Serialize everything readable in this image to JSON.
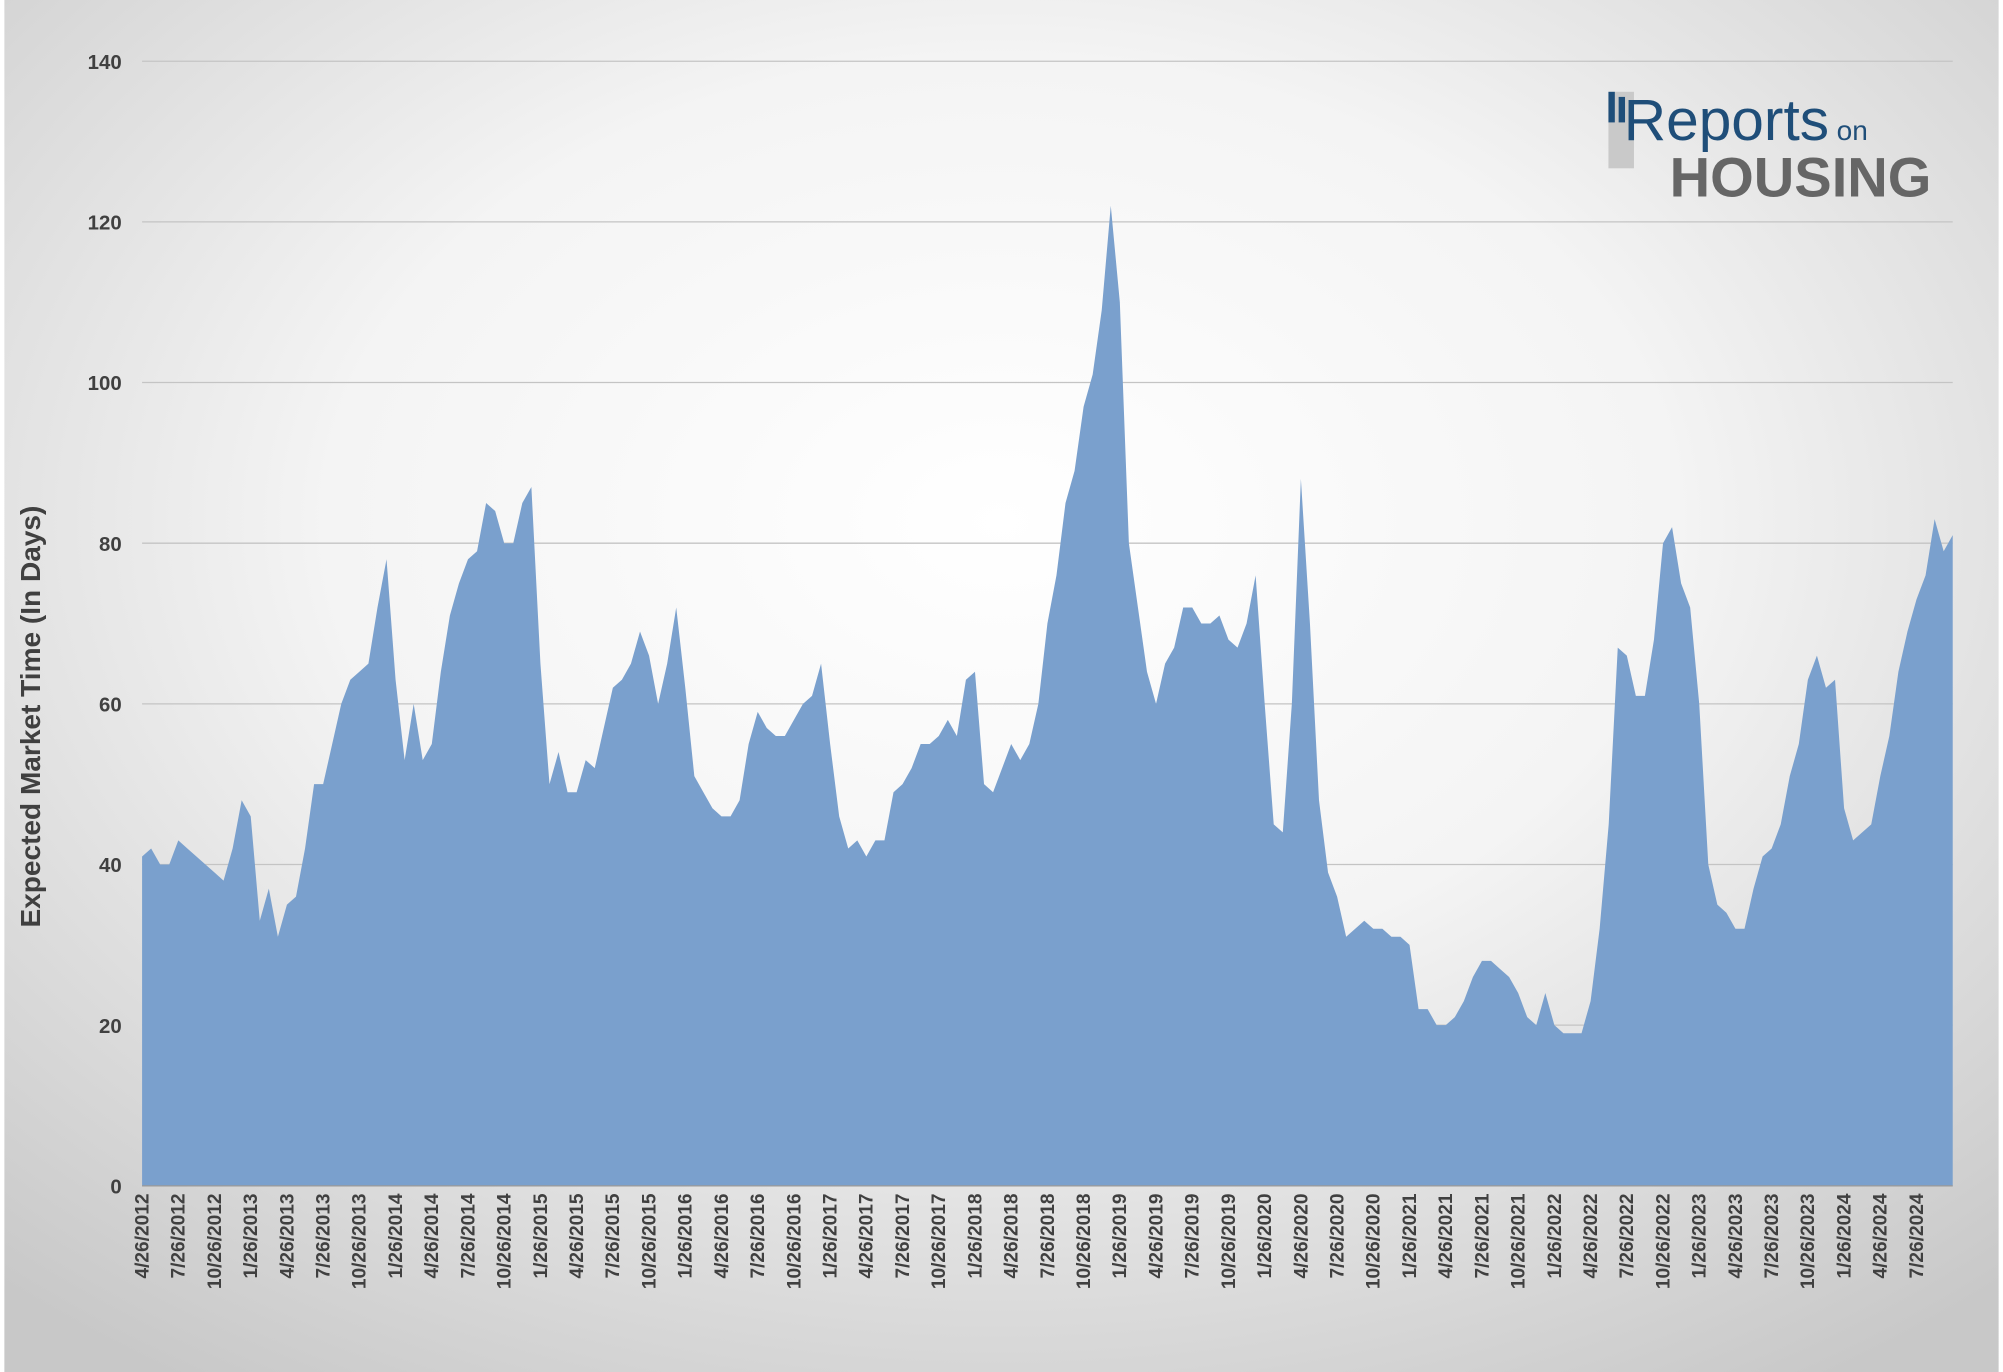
{
  "chart_data": {
    "type": "area",
    "y_label": "Expected Market Time (In Days)",
    "color": "#7aa0cd",
    "ylim": [
      0,
      140
    ],
    "yticks": [
      0,
      20,
      40,
      60,
      80,
      100,
      120,
      140
    ],
    "grid": true,
    "categories": [
      "4/26/2012",
      null,
      null,
      null,
      "7/26/2012",
      null,
      null,
      null,
      "10/26/2012",
      null,
      null,
      null,
      "1/26/2013",
      null,
      null,
      null,
      "4/26/2013",
      null,
      null,
      null,
      "7/26/2013",
      null,
      null,
      null,
      "10/26/2013",
      null,
      null,
      null,
      "1/26/2014",
      null,
      null,
      null,
      "4/26/2014",
      null,
      null,
      null,
      "7/26/2014",
      null,
      null,
      null,
      "10/26/2014",
      null,
      null,
      null,
      "1/26/2015",
      null,
      null,
      null,
      "4/26/2015",
      null,
      null,
      null,
      "7/26/2015",
      null,
      null,
      null,
      "10/26/2015",
      null,
      null,
      null,
      "1/26/2016",
      null,
      null,
      null,
      "4/26/2016",
      null,
      null,
      null,
      "7/26/2016",
      null,
      null,
      null,
      "10/26/2016",
      null,
      null,
      null,
      "1/26/2017",
      null,
      null,
      null,
      "4/26/2017",
      null,
      null,
      null,
      "7/26/2017",
      null,
      null,
      null,
      "10/26/2017",
      null,
      null,
      null,
      "1/26/2018",
      null,
      null,
      null,
      "4/26/2018",
      null,
      null,
      null,
      "7/26/2018",
      null,
      null,
      null,
      "10/26/2018",
      null,
      null,
      null,
      "1/26/2019",
      null,
      null,
      null,
      "4/26/2019",
      null,
      null,
      null,
      "7/26/2019",
      null,
      null,
      null,
      "10/26/2019",
      null,
      null,
      null,
      "1/26/2020",
      null,
      null,
      null,
      "4/26/2020",
      null,
      null,
      null,
      "7/26/2020",
      null,
      null,
      null,
      "10/26/2020",
      null,
      null,
      null,
      "1/26/2021",
      null,
      null,
      null,
      "4/26/2021",
      null,
      null,
      null,
      "7/26/2021",
      null,
      null,
      null,
      "10/26/2021",
      null,
      null,
      null,
      "1/26/2022",
      null,
      null,
      null,
      "4/26/2022",
      null,
      null,
      null,
      "7/26/2022",
      null,
      null,
      null,
      "10/26/2022",
      null,
      null,
      null,
      "1/26/2023",
      null,
      null,
      null,
      "4/26/2023",
      null,
      null,
      null,
      "7/26/2023",
      null,
      null,
      null,
      "10/26/2023",
      null,
      null,
      null,
      "1/26/2024",
      null,
      null,
      null,
      "4/26/2024",
      null,
      null,
      null,
      "7/26/2024",
      null,
      null,
      null,
      null
    ],
    "values": [
      41,
      42,
      40,
      40,
      43,
      42,
      41,
      40,
      39,
      38,
      42,
      48,
      46,
      33,
      37,
      31,
      35,
      36,
      42,
      50,
      50,
      55,
      60,
      63,
      64,
      65,
      72,
      78,
      63,
      53,
      60,
      53,
      55,
      64,
      71,
      75,
      78,
      79,
      85,
      84,
      80,
      80,
      85,
      87,
      65,
      50,
      54,
      49,
      49,
      53,
      52,
      57,
      62,
      63,
      65,
      69,
      66,
      60,
      65,
      72,
      62,
      51,
      49,
      47,
      46,
      46,
      48,
      55,
      59,
      57,
      56,
      56,
      58,
      60,
      61,
      65,
      55,
      46,
      42,
      43,
      41,
      43,
      43,
      49,
      50,
      52,
      55,
      55,
      56,
      58,
      56,
      63,
      64,
      50,
      49,
      52,
      55,
      53,
      55,
      60,
      70,
      76,
      85,
      89,
      97,
      101,
      109,
      122,
      110,
      80,
      72,
      64,
      60,
      65,
      67,
      72,
      72,
      70,
      70,
      71,
      68,
      67,
      70,
      76,
      60,
      45,
      44,
      60,
      88,
      70,
      48,
      39,
      36,
      31,
      32,
      33,
      32,
      32,
      31,
      31,
      30,
      22,
      22,
      20,
      20,
      21,
      23,
      26,
      28,
      28,
      27,
      26,
      24,
      21,
      20,
      24,
      20,
      19,
      19,
      19,
      23,
      32,
      45,
      67,
      66,
      61,
      61,
      68,
      80,
      82,
      75,
      72,
      60,
      40,
      35,
      34,
      32,
      32,
      37,
      41,
      42,
      45,
      51,
      55,
      63,
      66,
      62,
      63,
      47,
      43,
      44,
      45,
      51,
      56,
      64,
      69,
      73,
      76,
      83,
      79,
      81
    ]
  },
  "logo": {
    "main": "Reports",
    "small": "on",
    "sub": "HOUSING"
  }
}
